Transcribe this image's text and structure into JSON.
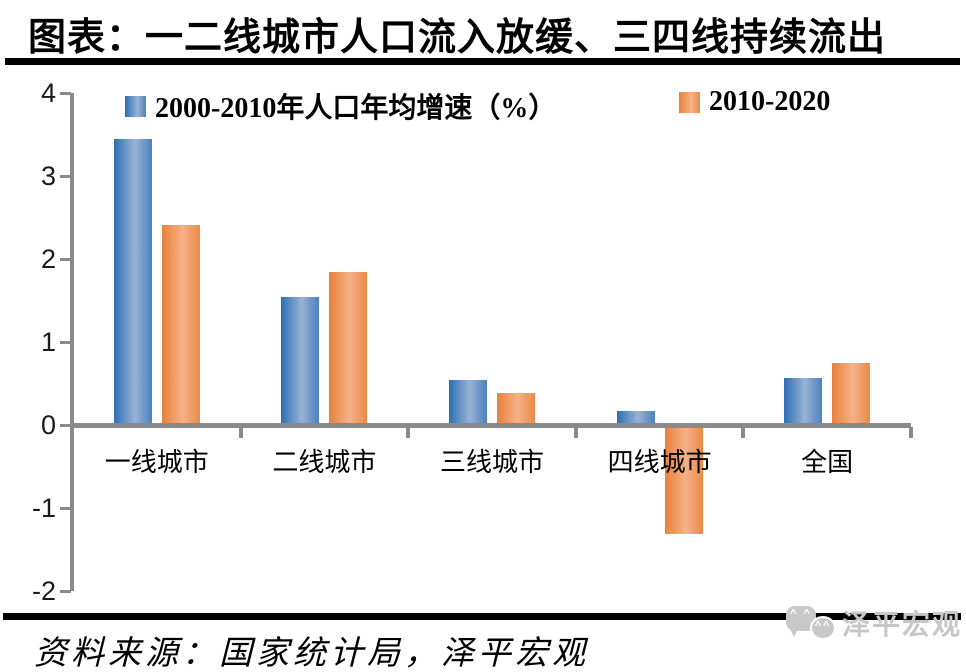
{
  "header": {
    "title": "图表：一二线城市人口流入放缓、三四线持续流出"
  },
  "chart_data": {
    "type": "bar",
    "title": "一二线城市人口流入放缓、三四线持续流出",
    "categories": [
      "一线城市",
      "二线城市",
      "三线城市",
      "四线城市",
      "全国"
    ],
    "series": [
      {
        "name": "2000-2010年人口年均增速（%）",
        "values": [
          3.45,
          1.54,
          0.54,
          0.17,
          0.57
        ]
      },
      {
        "name": "2010-2020",
        "values": [
          2.41,
          1.84,
          0.39,
          -1.31,
          0.75
        ]
      }
    ],
    "xlabel": "",
    "ylabel": "",
    "ylim": [
      -2,
      4
    ],
    "yticks": [
      4,
      3,
      2,
      1,
      0,
      -1,
      -2
    ],
    "grid": false,
    "legend_position": "top"
  },
  "colors": {
    "series": [
      {
        "dark": "#2d6db6",
        "light": "#97b3d3",
        "mid": "#4c80c0"
      },
      {
        "dark": "#e8813b",
        "light": "#f5b287",
        "mid": "#ea8a46"
      }
    ],
    "axis": "#8a8a8a",
    "logo_gray": "#c9c9c9"
  },
  "footer": {
    "source": "资料来源：国家统计局，泽平宏观",
    "logo_text": "泽平宏观"
  }
}
